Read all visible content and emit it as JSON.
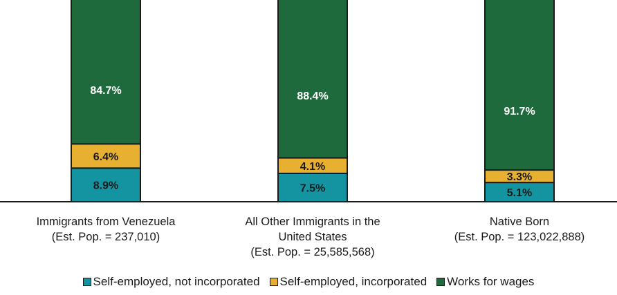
{
  "chart_data": {
    "type": "bar",
    "stacked": true,
    "percent_scale": true,
    "categories": [
      "Immigrants from Venezuela\n(Est. Pop. = 237,010)",
      "All Other Immigrants in the\nUnited States\n(Est. Pop. = 25,585,568)",
      "Native Born\n(Est. Pop. = 123,022,888)"
    ],
    "series": [
      {
        "name": "Self-employed, not incorporated",
        "color": "#1493a0",
        "values": [
          8.9,
          7.5,
          5.1
        ],
        "labels": [
          "8.9%",
          "7.5%",
          "5.1%"
        ]
      },
      {
        "name": "Self-employed, incorporated",
        "color": "#e8b030",
        "values": [
          6.4,
          4.1,
          3.3
        ],
        "labels": [
          "6.4%",
          "4.1%",
          "3.3%"
        ]
      },
      {
        "name": "Works for wages",
        "color": "#1f6a3d",
        "values": [
          84.7,
          88.4,
          91.7
        ],
        "labels": [
          "84.7%",
          "88.4%",
          "91.7%"
        ]
      }
    ],
    "legend_position": "bottom",
    "grid": false
  }
}
